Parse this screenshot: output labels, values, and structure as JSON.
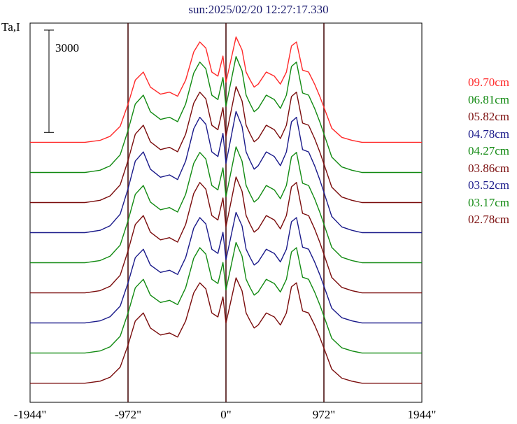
{
  "chart_data": {
    "type": "line",
    "title": "sun:2025/02/20 12:27:17.330",
    "ylabel": "Ta,I",
    "xlabel": "",
    "scale_bar_label": "3000",
    "x_ticks": [
      "-1944\"",
      "-972\"",
      "0\"",
      "972\"",
      "1944\""
    ],
    "x_tick_values": [
      -1944,
      -972,
      0,
      972,
      1944
    ],
    "xlim": [
      -1944,
      1944
    ],
    "vertical_lines_at": [
      -972,
      0,
      972
    ],
    "x": [
      -1944,
      -1400,
      -1250,
      -1150,
      -1050,
      -972,
      -900,
      -820,
      -750,
      -650,
      -560,
      -480,
      -400,
      -320,
      -260,
      -200,
      -140,
      -80,
      -30,
      0,
      40,
      100,
      160,
      200,
      240,
      280,
      320,
      400,
      480,
      540,
      600,
      650,
      700,
      760,
      820,
      880,
      930,
      972,
      1050,
      1150,
      1250,
      1350,
      1944
    ],
    "profile_shape": [
      0,
      0,
      0.02,
      0.06,
      0.16,
      0.38,
      0.62,
      0.7,
      0.55,
      0.48,
      0.5,
      0.46,
      0.62,
      0.9,
      1.0,
      0.94,
      0.7,
      0.66,
      0.86,
      0.6,
      0.78,
      1.05,
      0.92,
      0.7,
      0.62,
      0.55,
      0.58,
      0.7,
      0.66,
      0.58,
      0.7,
      0.96,
      1.0,
      0.72,
      0.7,
      0.58,
      0.46,
      0.35,
      0.14,
      0.05,
      0.02,
      0,
      0
    ],
    "series": [
      {
        "name": "09.70cm",
        "color": "#ff2a2a",
        "baseline_value": 24000,
        "peak_value": 10000
      },
      {
        "name": "06.81cm",
        "color": "#128a12",
        "baseline_value": 21000,
        "peak_value": 11000
      },
      {
        "name": "05.82cm",
        "color": "#7a0c0c",
        "baseline_value": 18000,
        "peak_value": 11000
      },
      {
        "name": "04.78cm",
        "color": "#1a1a8a",
        "baseline_value": 15000,
        "peak_value": 11500
      },
      {
        "name": "04.27cm",
        "color": "#128a12",
        "baseline_value": 12000,
        "peak_value": 11000
      },
      {
        "name": "03.86cm",
        "color": "#7a0c0c",
        "baseline_value": 9000,
        "peak_value": 11000
      },
      {
        "name": "03.52cm",
        "color": "#1a1a8a",
        "baseline_value": 6000,
        "peak_value": 10500
      },
      {
        "name": "03.17cm",
        "color": "#128a12",
        "baseline_value": 3000,
        "peak_value": 10500
      },
      {
        "name": "02.78cm",
        "color": "#7a0c0c",
        "baseline_value": 0,
        "peak_value": 10000
      }
    ],
    "ylim": [
      -1000,
      34000
    ],
    "grid": false,
    "legend_placement": "right"
  }
}
